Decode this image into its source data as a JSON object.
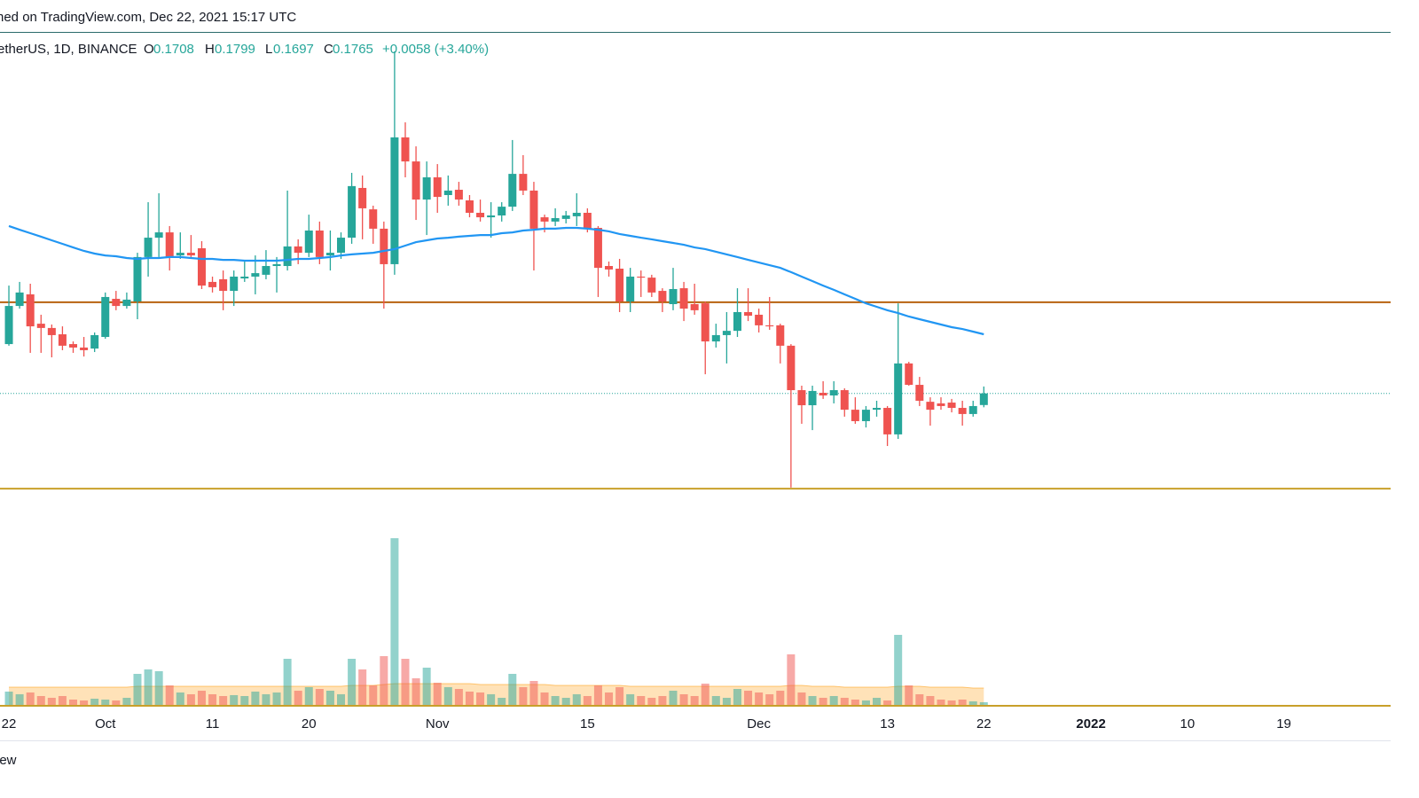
{
  "chart_data": {
    "type": "candlestick",
    "header": "hed on TradingView.com, Dec 22, 2021 15:17 UTC",
    "symbol": "etherUS, 1D, BINANCE",
    "ohlc_labels": [
      "O",
      "H",
      "L",
      "C"
    ],
    "change_label": "+0.0058 (+3.40%)",
    "footer": "iew",
    "up_color": "#26a69a",
    "down_color": "#ef5350",
    "xlim": [
      -0.83,
      128.97
    ],
    "xticks": [
      {
        "value": 0,
        "label": "22"
      },
      {
        "value": 9,
        "label": "Oct"
      },
      {
        "value": 19,
        "label": "11"
      },
      {
        "value": 28,
        "label": "20"
      },
      {
        "value": 40,
        "label": "Nov"
      },
      {
        "value": 54,
        "label": "15"
      },
      {
        "value": 70,
        "label": "Dec"
      },
      {
        "value": 82,
        "label": "13"
      },
      {
        "value": 91,
        "label": "22"
      },
      {
        "value": 101,
        "label": "2022",
        "bold": true
      },
      {
        "value": 110,
        "label": "10"
      },
      {
        "value": 119,
        "label": "19"
      }
    ],
    "ylim": [
      0.0063,
      0.3534
    ],
    "open": [
      0.2007,
      0.2194,
      0.2251,
      0.2107,
      0.2086,
      0.2055,
      0.2007,
      0.199,
      0.1985,
      0.2042,
      0.2229,
      0.2194,
      0.2216,
      0.2434,
      0.2529,
      0.2555,
      0.2442,
      0.2455,
      0.2477,
      0.2312,
      0.2325,
      0.2268,
      0.2329,
      0.2338,
      0.2347,
      0.239,
      0.239,
      0.2486,
      0.2455,
      0.2564,
      0.2442,
      0.2455,
      0.2529,
      0.2773,
      0.2668,
      0.2573,
      0.2399,
      0.3021,
      0.2903,
      0.2716,
      0.2825,
      0.2738,
      0.2764,
      0.2712,
      0.2651,
      0.2629,
      0.2638,
      0.2681,
      0.2842,
      0.276,
      0.2629,
      0.2608,
      0.2621,
      0.2634,
      0.2651,
      0.2577,
      0.239,
      0.2377,
      0.2216,
      0.2338,
      0.2333,
      0.2268,
      0.2203,
      0.2281,
      0.2203,
      0.2207,
      0.202,
      0.2051,
      0.2072,
      0.2164,
      0.2151,
      0.2099,
      0.2099,
      0.1999,
      0.1781,
      0.1707,
      0.1768,
      0.1755,
      0.1781,
      0.1685,
      0.1629,
      0.1685,
      0.1694,
      0.1564,
      0.1912,
      0.1807,
      0.1724,
      0.1716,
      0.172,
      0.1694,
      0.1664,
      0.1708
    ],
    "high": [
      0.2294,
      0.2312,
      0.2303,
      0.2151,
      0.2103,
      0.2094,
      0.202,
      0.2042,
      0.2064,
      0.226,
      0.2268,
      0.226,
      0.2455,
      0.2703,
      0.2747,
      0.2586,
      0.2555,
      0.2542,
      0.2512,
      0.2338,
      0.2368,
      0.2368,
      0.2412,
      0.2442,
      0.2468,
      0.2434,
      0.276,
      0.2521,
      0.2642,
      0.2608,
      0.2564,
      0.2555,
      0.2847,
      0.2834,
      0.2686,
      0.2608,
      0.3443,
      0.3095,
      0.2977,
      0.2903,
      0.289,
      0.2834,
      0.2803,
      0.2738,
      0.2716,
      0.2703,
      0.2703,
      0.3008,
      0.2934,
      0.2803,
      0.2642,
      0.2673,
      0.266,
      0.2747,
      0.2673,
      0.2586,
      0.2412,
      0.2425,
      0.2381,
      0.2368,
      0.2347,
      0.2281,
      0.2381,
      0.2312,
      0.2303,
      0.2216,
      0.2107,
      0.2164,
      0.2281,
      0.2281,
      0.2181,
      0.2238,
      0.2107,
      0.2007,
      0.1803,
      0.1803,
      0.1825,
      0.1825,
      0.179,
      0.1746,
      0.1703,
      0.1729,
      0.1703,
      0.2207,
      0.192,
      0.1846,
      0.1746,
      0.1746,
      0.1738,
      0.1729,
      0.1729,
      0.1799
    ],
    "low": [
      0.1999,
      0.2181,
      0.1964,
      0.1964,
      0.1942,
      0.1977,
      0.1964,
      0.1946,
      0.1968,
      0.2033,
      0.2173,
      0.2181,
      0.2129,
      0.2338,
      0.2434,
      0.2368,
      0.2425,
      0.2425,
      0.2277,
      0.226,
      0.2173,
      0.2194,
      0.2312,
      0.2251,
      0.2325,
      0.226,
      0.2368,
      0.2399,
      0.2434,
      0.2399,
      0.2368,
      0.2425,
      0.2499,
      0.2521,
      0.2499,
      0.2181,
      0.2347,
      0.2825,
      0.2616,
      0.2542,
      0.2651,
      0.2686,
      0.2686,
      0.2629,
      0.2608,
      0.2529,
      0.2608,
      0.266,
      0.2738,
      0.2368,
      0.2555,
      0.2586,
      0.2599,
      0.2586,
      0.2555,
      0.2238,
      0.2338,
      0.2164,
      0.2164,
      0.2238,
      0.2238,
      0.2164,
      0.2173,
      0.212,
      0.2151,
      0.1859,
      0.199,
      0.1912,
      0.2042,
      0.212,
      0.2064,
      0.2077,
      0.1912,
      0.1303,
      0.1616,
      0.1585,
      0.1738,
      0.1716,
      0.1651,
      0.1616,
      0.1598,
      0.1651,
      0.1507,
      0.1542,
      0.1803,
      0.1703,
      0.1607,
      0.1685,
      0.1672,
      0.1607,
      0.1651,
      0.1697
    ],
    "close": [
      0.2194,
      0.226,
      0.2094,
      0.2086,
      0.2051,
      0.1999,
      0.199,
      0.1977,
      0.2051,
      0.2238,
      0.2194,
      0.2225,
      0.2434,
      0.2529,
      0.2555,
      0.2434,
      0.2455,
      0.2442,
      0.2294,
      0.2286,
      0.2268,
      0.2338,
      0.2338,
      0.2355,
      0.239,
      0.2399,
      0.2486,
      0.2455,
      0.2564,
      0.2434,
      0.2455,
      0.2529,
      0.2782,
      0.2673,
      0.2573,
      0.2399,
      0.3021,
      0.2903,
      0.2716,
      0.2825,
      0.2729,
      0.276,
      0.2716,
      0.2651,
      0.2629,
      0.2638,
      0.2681,
      0.2842,
      0.276,
      0.2573,
      0.2608,
      0.2625,
      0.2638,
      0.2651,
      0.2573,
      0.2381,
      0.2373,
      0.2216,
      0.2338,
      0.2333,
      0.226,
      0.2216,
      0.2277,
      0.2181,
      0.2173,
      0.202,
      0.2051,
      0.2072,
      0.2164,
      0.2146,
      0.2099,
      0.2094,
      0.1999,
      0.1781,
      0.1707,
      0.1777,
      0.1755,
      0.1781,
      0.1685,
      0.1629,
      0.1685,
      0.1694,
      0.1564,
      0.1912,
      0.1807,
      0.1729,
      0.1685,
      0.1703,
      0.1694,
      0.1664,
      0.1703,
      0.1765
    ],
    "ma": [
      0.2586,
      0.2568,
      0.2551,
      0.2534,
      0.2516,
      0.2499,
      0.2481,
      0.2464,
      0.2451,
      0.2442,
      0.2438,
      0.2429,
      0.2425,
      0.2429,
      0.2429,
      0.2434,
      0.2434,
      0.2429,
      0.2425,
      0.2425,
      0.242,
      0.242,
      0.2416,
      0.2416,
      0.2416,
      0.2416,
      0.242,
      0.2425,
      0.2425,
      0.2429,
      0.2434,
      0.2442,
      0.2447,
      0.2451,
      0.2455,
      0.2464,
      0.2473,
      0.249,
      0.2507,
      0.2516,
      0.2525,
      0.2529,
      0.2534,
      0.2538,
      0.2542,
      0.2542,
      0.2551,
      0.2555,
      0.2564,
      0.2568,
      0.2573,
      0.2573,
      0.2577,
      0.2577,
      0.2573,
      0.2568,
      0.256,
      0.2547,
      0.2538,
      0.2529,
      0.2521,
      0.2512,
      0.2503,
      0.2494,
      0.2481,
      0.2473,
      0.246,
      0.2447,
      0.2434,
      0.242,
      0.2407,
      0.2394,
      0.2381,
      0.236,
      0.2338,
      0.2316,
      0.2294,
      0.2273,
      0.2251,
      0.2229,
      0.2207,
      0.219,
      0.2173,
      0.2159,
      0.2142,
      0.2129,
      0.2116,
      0.2103,
      0.209,
      0.2081,
      0.2068,
      0.2055
    ],
    "ma_color": "#2196f3",
    "levels": [
      {
        "value": 0.2212,
        "color": "#b8620f"
      },
      {
        "value": 0.1298,
        "color": "#c8a02a"
      }
    ],
    "last_price_color": "#26a69a",
    "volume_ylim": [
      0,
      200
    ],
    "volume": [
      15,
      12,
      14,
      10,
      8,
      10,
      6,
      5,
      7,
      6,
      5,
      8,
      35,
      40,
      38,
      22,
      14,
      12,
      16,
      12,
      10,
      11,
      10,
      15,
      12,
      14,
      52,
      16,
      20,
      18,
      16,
      12,
      52,
      40,
      22,
      55,
      188,
      52,
      30,
      42,
      25,
      20,
      18,
      15,
      14,
      12,
      8,
      35,
      20,
      27,
      14,
      10,
      8,
      12,
      10,
      22,
      14,
      20,
      12,
      10,
      8,
      10,
      16,
      12,
      10,
      24,
      10,
      8,
      18,
      16,
      14,
      12,
      16,
      57,
      14,
      10,
      8,
      10,
      8,
      6,
      5,
      8,
      5,
      79,
      22,
      12,
      10,
      6,
      5,
      6,
      4,
      3
    ],
    "volume_ma": [
      20,
      20,
      20,
      20,
      20,
      20,
      20,
      20,
      20,
      20,
      20,
      20,
      21,
      21,
      21,
      21,
      21,
      21,
      21,
      21,
      21,
      21,
      21,
      21,
      21,
      21,
      21,
      21,
      21,
      21,
      21,
      21,
      22,
      22,
      22,
      23,
      24,
      24,
      24,
      24,
      24,
      24,
      24,
      24,
      23,
      23,
      23,
      23,
      23,
      23,
      23,
      22,
      22,
      22,
      22,
      22,
      22,
      22,
      21,
      21,
      21,
      21,
      21,
      21,
      21,
      21,
      21,
      21,
      21,
      21,
      21,
      21,
      21,
      22,
      22,
      21,
      21,
      21,
      20,
      20,
      20,
      20,
      20,
      21,
      21,
      21,
      20,
      20,
      20,
      20,
      19,
      19
    ],
    "volume_ma_color": "#ff9800"
  }
}
